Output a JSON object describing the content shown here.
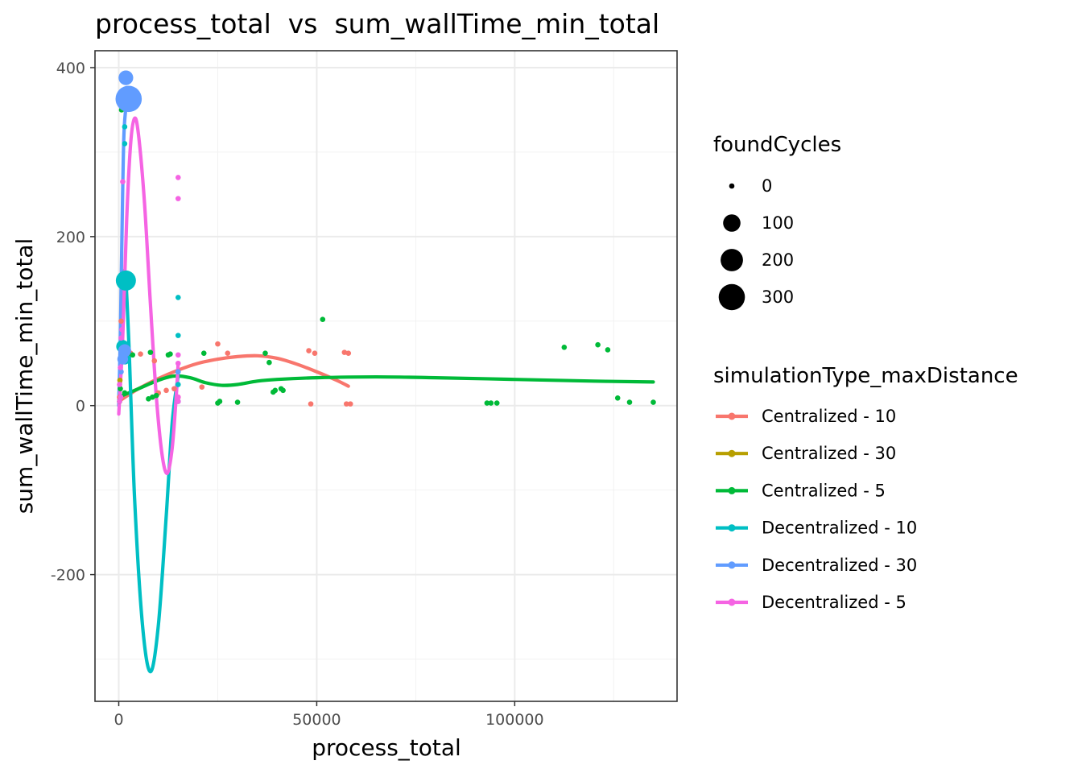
{
  "chart_data": {
    "type": "scatter",
    "title": "process_total  vs  sum_wallTime_min_total",
    "xlabel": "process_total",
    "ylabel": "sum_wallTime_min_total",
    "xlim": [
      -6000,
      141000
    ],
    "ylim": [
      -350,
      420
    ],
    "x_ticks": [
      0,
      50000,
      100000
    ],
    "x_tick_labels": [
      "0",
      "50000",
      "100000"
    ],
    "y_ticks": [
      -200,
      0,
      200,
      400
    ],
    "y_tick_labels": [
      "-200",
      "0",
      "200",
      "400"
    ],
    "grid": true,
    "legend_placement": "right",
    "size_legend": {
      "title": "foundCycles",
      "entries": [
        {
          "label": "0",
          "value": 0
        },
        {
          "label": "100",
          "value": 100
        },
        {
          "label": "200",
          "value": 200
        },
        {
          "label": "300",
          "value": 300
        }
      ]
    },
    "color_legend": {
      "title": "simulationType_maxDistance",
      "entries": [
        {
          "label": "Centralized - 10",
          "color": "#F8766D"
        },
        {
          "label": "Centralized - 30",
          "color": "#B79F00"
        },
        {
          "label": "Centralized - 5",
          "color": "#00BA38"
        },
        {
          "label": "Decentralized - 10",
          "color": "#00BFC4"
        },
        {
          "label": "Decentralized - 30",
          "color": "#619CFF"
        },
        {
          "label": "Decentralized - 5",
          "color": "#F564E3"
        }
      ]
    },
    "series": [
      {
        "name": "Centralized - 10",
        "color": "#F8766D",
        "points": [
          [
            200,
            10,
            0
          ],
          [
            600,
            100,
            0
          ],
          [
            1000,
            60,
            0
          ],
          [
            3000,
            62,
            0
          ],
          [
            5500,
            61,
            0
          ],
          [
            9000,
            53,
            0
          ],
          [
            10000,
            15,
            0
          ],
          [
            12000,
            18,
            0
          ],
          [
            14000,
            20,
            0
          ],
          [
            15000,
            10,
            0
          ],
          [
            21000,
            22,
            0
          ],
          [
            25000,
            73,
            0
          ],
          [
            27500,
            62,
            0
          ],
          [
            48000,
            65,
            0
          ],
          [
            48500,
            2,
            0
          ],
          [
            49500,
            62,
            0
          ],
          [
            57000,
            63,
            0
          ],
          [
            57500,
            2,
            0
          ],
          [
            58000,
            62,
            0
          ],
          [
            58500,
            2,
            0
          ]
        ],
        "trend": [
          [
            0,
            5
          ],
          [
            5000,
            20
          ],
          [
            10000,
            32
          ],
          [
            15000,
            42
          ],
          [
            20000,
            50
          ],
          [
            25000,
            55
          ],
          [
            30000,
            58
          ],
          [
            35000,
            59
          ],
          [
            40000,
            56
          ],
          [
            45000,
            49
          ],
          [
            50000,
            40
          ],
          [
            55000,
            30
          ],
          [
            58000,
            23
          ]
        ]
      },
      {
        "name": "Centralized - 30",
        "color": "#B79F00",
        "points": [
          [
            300,
            30,
            0
          ]
        ],
        "trend": []
      },
      {
        "name": "Centralized - 5",
        "color": "#00BA38",
        "points": [
          [
            200,
            5,
            0
          ],
          [
            400,
            20,
            0
          ],
          [
            700,
            350,
            0
          ],
          [
            1000,
            60,
            0
          ],
          [
            1500,
            15,
            0
          ],
          [
            2500,
            62,
            0
          ],
          [
            3500,
            60,
            0
          ],
          [
            7500,
            8,
            0
          ],
          [
            8500,
            10,
            0
          ],
          [
            9500,
            12,
            0
          ],
          [
            8000,
            63,
            0
          ],
          [
            12500,
            60,
            0
          ],
          [
            13000,
            61,
            0
          ],
          [
            21500,
            62,
            0
          ],
          [
            25000,
            3,
            0
          ],
          [
            25500,
            5,
            0
          ],
          [
            30000,
            4,
            0
          ],
          [
            37000,
            62,
            0
          ],
          [
            38000,
            51,
            0
          ],
          [
            39000,
            16,
            0
          ],
          [
            39500,
            18,
            0
          ],
          [
            41000,
            20,
            0
          ],
          [
            41500,
            18,
            0
          ],
          [
            51500,
            102,
            0
          ],
          [
            93000,
            3,
            0
          ],
          [
            94000,
            3,
            0
          ],
          [
            95500,
            3,
            0
          ],
          [
            112500,
            69,
            0
          ],
          [
            121000,
            72,
            0
          ],
          [
            123500,
            66,
            0
          ],
          [
            126000,
            9,
            0
          ],
          [
            129000,
            4,
            0
          ],
          [
            135000,
            4,
            0
          ]
        ],
        "trend": [
          [
            0,
            10
          ],
          [
            5000,
            20
          ],
          [
            10000,
            30
          ],
          [
            14000,
            35
          ],
          [
            18000,
            33
          ],
          [
            22000,
            27
          ],
          [
            26000,
            24
          ],
          [
            30000,
            25
          ],
          [
            35000,
            29
          ],
          [
            40000,
            31
          ],
          [
            50000,
            33
          ],
          [
            65000,
            34
          ],
          [
            80000,
            33
          ],
          [
            100000,
            31
          ],
          [
            120000,
            29
          ],
          [
            135000,
            28
          ]
        ]
      },
      {
        "name": "Decentralized - 10",
        "color": "#00BFC4",
        "points": [
          [
            1000,
            70,
            40
          ],
          [
            1500,
            55,
            20
          ],
          [
            1800,
            148,
            150
          ],
          [
            1500,
            310,
            0
          ],
          [
            1500,
            330,
            0
          ],
          [
            15000,
            128,
            0
          ],
          [
            15000,
            83,
            0
          ],
          [
            15000,
            40,
            0
          ],
          [
            15000,
            25,
            0
          ],
          [
            15000,
            5,
            0
          ]
        ],
        "trend": [
          [
            0,
            0
          ],
          [
            700,
            100
          ],
          [
            1500,
            160
          ],
          [
            2500,
            80
          ],
          [
            4000,
            -110
          ],
          [
            6000,
            -260
          ],
          [
            8000,
            -315
          ],
          [
            10000,
            -260
          ],
          [
            12000,
            -130
          ],
          [
            13500,
            -20
          ],
          [
            15000,
            35
          ]
        ]
      },
      {
        "name": "Decentralized - 30",
        "color": "#619CFF",
        "points": [
          [
            1800,
            388,
            60
          ],
          [
            2500,
            363,
            300
          ],
          [
            1500,
            65,
            40
          ],
          [
            1000,
            55,
            20
          ],
          [
            600,
            40,
            0
          ],
          [
            15000,
            40,
            0
          ]
        ],
        "trend": [
          [
            0,
            0
          ],
          [
            400,
            80
          ],
          [
            800,
            200
          ],
          [
            1300,
            320
          ],
          [
            2000,
            360
          ]
        ]
      },
      {
        "name": "Decentralized - 5",
        "color": "#F564E3",
        "points": [
          [
            200,
            25,
            0
          ],
          [
            400,
            45,
            0
          ],
          [
            600,
            80,
            0
          ],
          [
            800,
            90,
            0
          ],
          [
            1000,
            265,
            0
          ],
          [
            15000,
            270,
            0
          ],
          [
            15000,
            245,
            0
          ],
          [
            15000,
            60,
            0
          ],
          [
            15000,
            50,
            0
          ],
          [
            15000,
            10,
            0
          ],
          [
            15000,
            5,
            0
          ],
          [
            200,
            5,
            0
          ],
          [
            500,
            10,
            0
          ]
        ],
        "trend": [
          [
            0,
            -10
          ],
          [
            1000,
            80
          ],
          [
            2000,
            220
          ],
          [
            3000,
            310
          ],
          [
            4000,
            340
          ],
          [
            5000,
            320
          ],
          [
            6500,
            240
          ],
          [
            8000,
            120
          ],
          [
            9500,
            10
          ],
          [
            11000,
            -60
          ],
          [
            12300,
            -80
          ],
          [
            13500,
            -50
          ],
          [
            14500,
            10
          ],
          [
            15000,
            50
          ]
        ]
      }
    ]
  }
}
